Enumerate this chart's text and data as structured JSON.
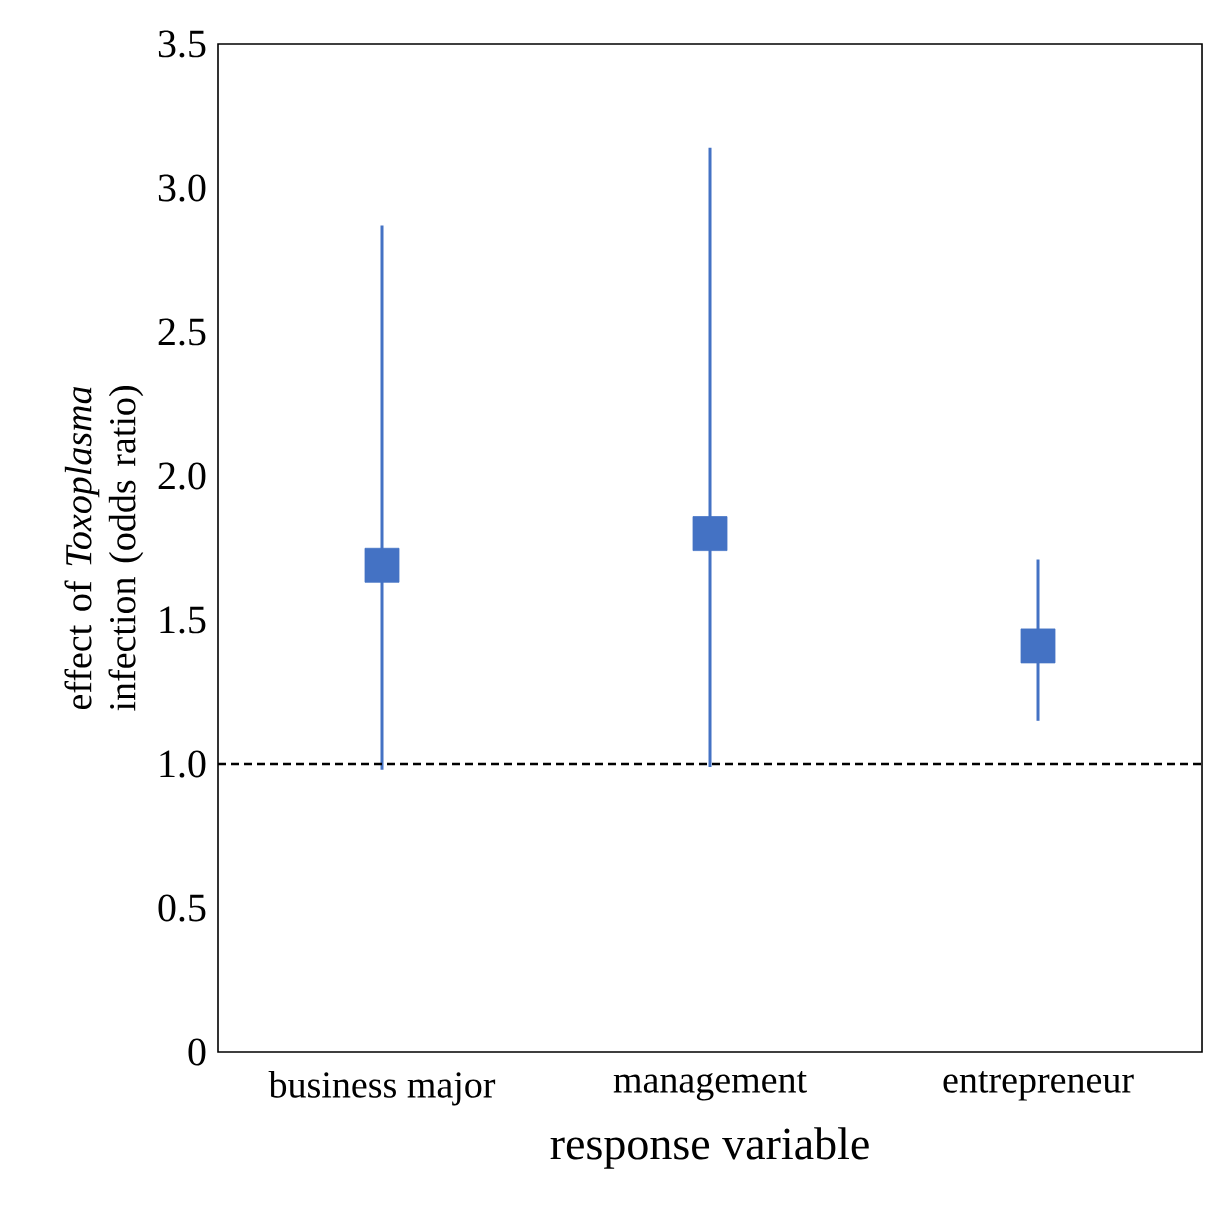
{
  "chart_data": {
    "type": "scatter",
    "xlabel": "response variable",
    "ylabel": "effect of *Toxoplasma* infection (odds ratio)",
    "categories": [
      "business major",
      "management",
      "entrepreneur"
    ],
    "series": [
      {
        "color": "#4472c4",
        "values": [
          1.69,
          1.8,
          1.41
        ],
        "errors": [
          [
            0.98,
            2.87
          ],
          [
            0.99,
            3.14
          ],
          [
            1.15,
            1.71
          ]
        ]
      }
    ],
    "marker": "square",
    "ylim": [
      0,
      3.5
    ],
    "yticks": [
      0,
      {
        "value": 0.5,
        "label": "0.5"
      },
      {
        "value": 1,
        "label": "1.0"
      },
      {
        "value": 1.5,
        "label": "1.5"
      },
      {
        "value": 2,
        "label": "2.0"
      },
      {
        "value": 2.5,
        "label": "2.5"
      },
      {
        "value": 3,
        "label": "3.0"
      },
      {
        "value": 3.5,
        "label": "3.5"
      }
    ],
    "ref_lines": [
      {
        "axis": "y",
        "value": 1.0,
        "color": "#000000",
        "line_style": "dashed"
      }
    ]
  }
}
